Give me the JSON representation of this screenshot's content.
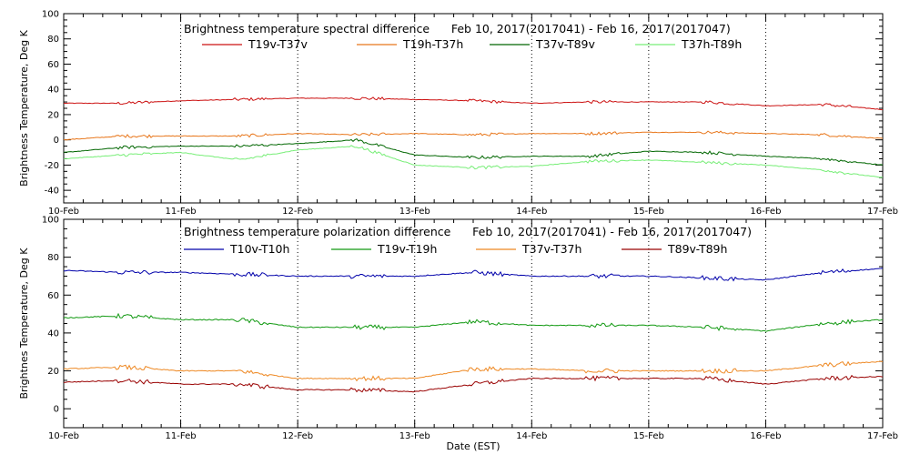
{
  "x_axis_label": "Date (EST)",
  "x_ticks": [
    "10-Feb",
    "11-Feb",
    "12-Feb",
    "13-Feb",
    "14-Feb",
    "15-Feb",
    "16-Feb",
    "17-Feb"
  ],
  "chart_data": [
    {
      "type": "line",
      "title": "Brightness temperature spectral difference      Feb 10, 2017(2017041) - Feb 16, 2017(2017047)",
      "ylabel": "Brightness Temperature, Deg K",
      "xlim": [
        "10-Feb",
        "17-Feb"
      ],
      "ylim": [
        -50,
        100
      ],
      "yticks": [
        -40,
        -20,
        0,
        20,
        40,
        60,
        80,
        100
      ],
      "grid": "vertical dotted at day boundaries",
      "legend": "top",
      "series": [
        {
          "name": "T19v-T37v",
          "color": "#cc1111",
          "x": [
            "10-Feb",
            "10-Feb 12h",
            "11-Feb",
            "11-Feb 12h",
            "12-Feb",
            "12-Feb 12h",
            "13-Feb",
            "13-Feb 12h",
            "14-Feb",
            "14-Feb 12h",
            "15-Feb",
            "15-Feb 12h",
            "16-Feb",
            "16-Feb 12h",
            "17-Feb"
          ],
          "y": [
            29,
            29,
            31,
            32,
            33,
            33,
            32,
            31,
            29,
            30,
            30,
            30,
            27,
            28,
            24
          ]
        },
        {
          "name": "T19h-T37h",
          "color": "#e8761a",
          "x": [
            "10-Feb",
            "10-Feb 12h",
            "11-Feb",
            "11-Feb 12h",
            "12-Feb",
            "12-Feb 12h",
            "13-Feb",
            "13-Feb 12h",
            "14-Feb",
            "14-Feb 12h",
            "15-Feb",
            "15-Feb 12h",
            "16-Feb",
            "16-Feb 12h",
            "17-Feb"
          ],
          "y": [
            0,
            3,
            3,
            3,
            5,
            4,
            5,
            4,
            5,
            5,
            6,
            6,
            5,
            4,
            1
          ]
        },
        {
          "name": "T37v-T89v",
          "color": "#006600",
          "x": [
            "10-Feb",
            "10-Feb 12h",
            "11-Feb",
            "11-Feb 12h",
            "12-Feb",
            "12-Feb 12h",
            "13-Feb",
            "13-Feb 12h",
            "14-Feb",
            "14-Feb 12h",
            "15-Feb",
            "15-Feb 12h",
            "16-Feb",
            "16-Feb 12h",
            "17-Feb"
          ],
          "y": [
            -10,
            -6,
            -5,
            -5,
            -3,
            0,
            -12,
            -14,
            -13,
            -13,
            -9,
            -10,
            -13,
            -15,
            -20
          ]
        },
        {
          "name": "T37h-T89h",
          "color": "#77ee77",
          "x": [
            "10-Feb",
            "10-Feb 12h",
            "11-Feb",
            "11-Feb 12h",
            "12-Feb",
            "12-Feb 12h",
            "13-Feb",
            "13-Feb 12h",
            "14-Feb",
            "14-Feb 12h",
            "15-Feb",
            "15-Feb 12h",
            "16-Feb",
            "16-Feb 12h",
            "17-Feb"
          ],
          "y": [
            -15,
            -12,
            -10,
            -16,
            -8,
            -5,
            -20,
            -22,
            -21,
            -17,
            -16,
            -18,
            -20,
            -24,
            -30
          ]
        }
      ]
    },
    {
      "type": "line",
      "title": "Brightness temperature polarization difference      Feb 10, 2017(2017041) - Feb 16, 2017(2017047)",
      "ylabel": "Brightnes Temperature, Deg K",
      "xlim": [
        "10-Feb",
        "17-Feb"
      ],
      "ylim": [
        -10,
        100
      ],
      "yticks": [
        0,
        20,
        40,
        60,
        80,
        100
      ],
      "grid": "vertical dotted at day boundaries",
      "legend": "top",
      "series": [
        {
          "name": "T10v-T10h",
          "color": "#0000aa",
          "x": [
            "10-Feb",
            "10-Feb 12h",
            "11-Feb",
            "11-Feb 12h",
            "12-Feb",
            "12-Feb 12h",
            "13-Feb",
            "13-Feb 12h",
            "14-Feb",
            "14-Feb 12h",
            "15-Feb",
            "15-Feb 12h",
            "16-Feb",
            "16-Feb 12h",
            "17-Feb"
          ],
          "y": [
            73,
            72,
            72,
            71,
            70,
            70,
            70,
            72,
            70,
            70,
            70,
            69,
            68,
            72,
            74
          ]
        },
        {
          "name": "T19v-T19h",
          "color": "#119911",
          "x": [
            "10-Feb",
            "10-Feb 12h",
            "11-Feb",
            "11-Feb 12h",
            "12-Feb",
            "12-Feb 12h",
            "13-Feb",
            "13-Feb 12h",
            "14-Feb",
            "14-Feb 12h",
            "15-Feb",
            "15-Feb 12h",
            "16-Feb",
            "16-Feb 12h",
            "17-Feb"
          ],
          "y": [
            48,
            49,
            47,
            47,
            43,
            43,
            43,
            46,
            44,
            44,
            44,
            43,
            41,
            45,
            47
          ]
        },
        {
          "name": "T37v-T37h",
          "color": "#ee8822",
          "x": [
            "10-Feb",
            "10-Feb 12h",
            "11-Feb",
            "11-Feb 12h",
            "12-Feb",
            "12-Feb 12h",
            "13-Feb",
            "13-Feb 12h",
            "14-Feb",
            "14-Feb 12h",
            "15-Feb",
            "15-Feb 12h",
            "16-Feb",
            "16-Feb 12h",
            "17-Feb"
          ],
          "y": [
            21,
            22,
            20,
            20,
            16,
            16,
            16,
            21,
            21,
            20,
            20,
            20,
            20,
            23,
            25
          ]
        },
        {
          "name": "T89v-T89h",
          "color": "#990000",
          "x": [
            "10-Feb",
            "10-Feb 12h",
            "11-Feb",
            "11-Feb 12h",
            "12-Feb",
            "12-Feb 12h",
            "13-Feb",
            "13-Feb 12h",
            "14-Feb",
            "14-Feb 12h",
            "15-Feb",
            "15-Feb 12h",
            "16-Feb",
            "16-Feb 12h",
            "17-Feb"
          ],
          "y": [
            14,
            15,
            13,
            13,
            10,
            10,
            9,
            13,
            16,
            16,
            16,
            16,
            13,
            16,
            17
          ]
        }
      ]
    }
  ]
}
